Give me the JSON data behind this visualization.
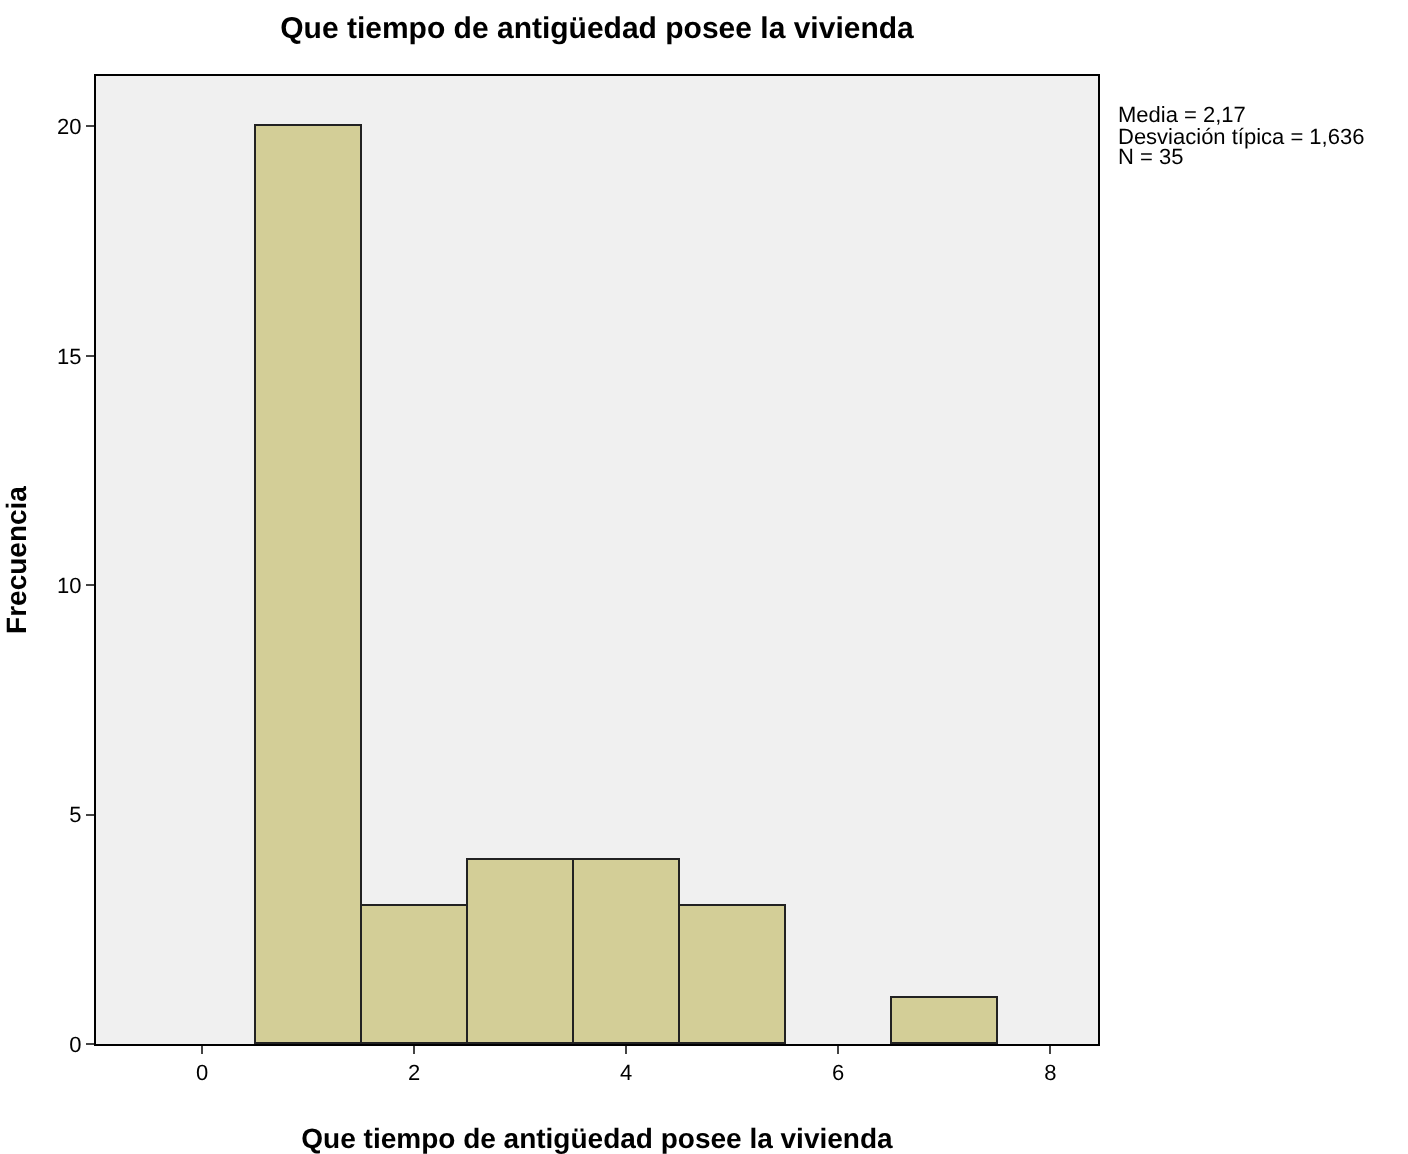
{
  "chart_data": {
    "type": "histogram",
    "title": "Que tiempo de antigüedad posee la vivienda",
    "xlabel": "Que tiempo de antigüedad posee la vivienda",
    "ylabel": "Frecuencia",
    "bins": [
      0.5,
      1.5,
      2.5,
      3.5,
      4.5,
      5.5,
      6.5,
      7.5
    ],
    "values": [
      20,
      3,
      4,
      4,
      3,
      0,
      1
    ],
    "color": "#d3ce97",
    "xlim": [
      -1,
      8.45
    ],
    "xticks": [
      0,
      2,
      4,
      6,
      8
    ],
    "ylim": [
      0,
      21.1
    ],
    "yticks": [
      0,
      5,
      10,
      15,
      20
    ],
    "grid": false,
    "legend": false,
    "annotations": [
      "Media = 2,17",
      "Desviación típica = 1,636",
      "N = 35"
    ]
  }
}
